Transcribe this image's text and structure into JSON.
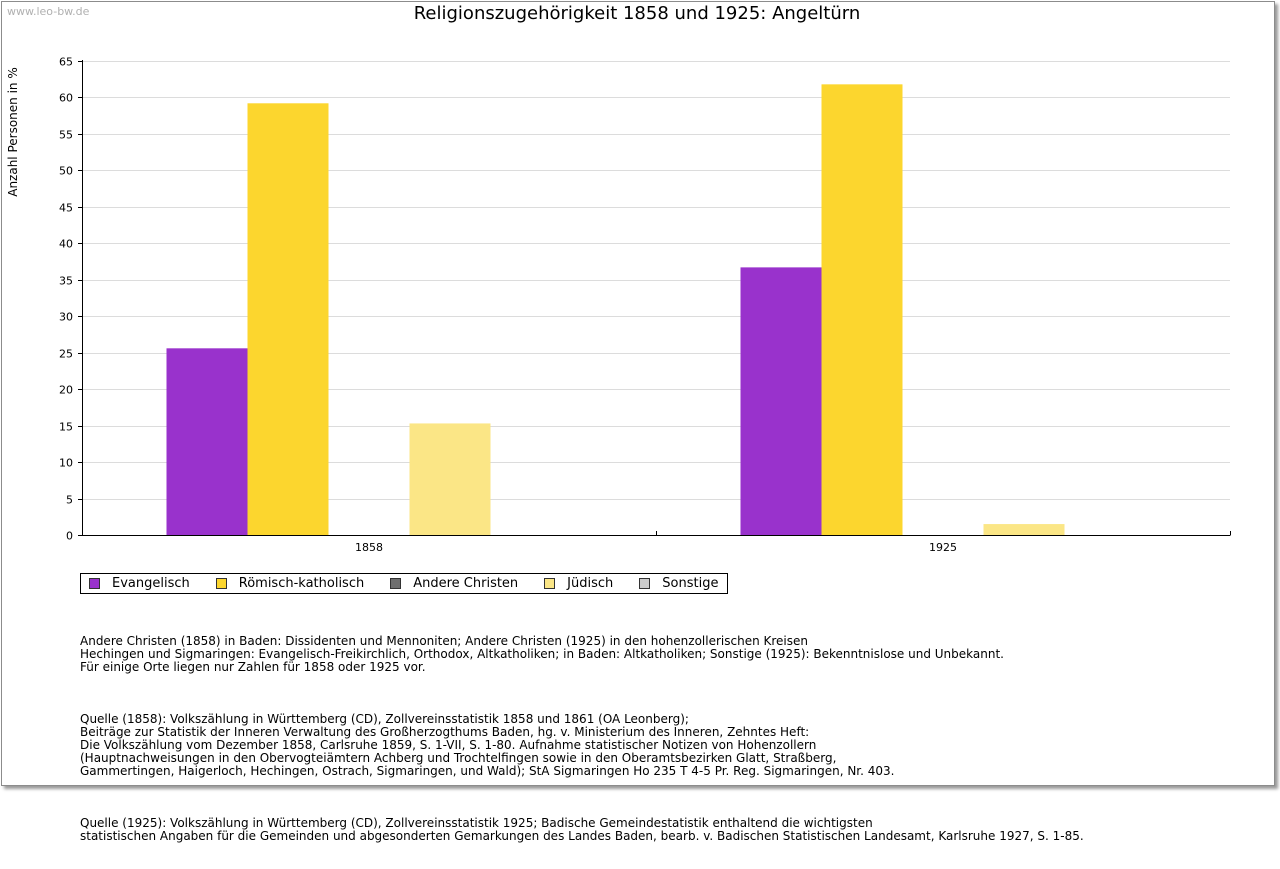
{
  "watermark": "www.leo-bw.de",
  "chart_data": {
    "type": "bar",
    "title": "Religionszugehörigkeit 1858 und 1925: Angeltürn",
    "ylabel": "Anzahl Personen in %",
    "xlabel": "",
    "ylim": [
      0,
      65
    ],
    "yticks": [
      0,
      5,
      10,
      15,
      20,
      25,
      30,
      35,
      40,
      45,
      50,
      55,
      60,
      65
    ],
    "grid": true,
    "categories": [
      "1858",
      "1925"
    ],
    "series": [
      {
        "name": "Evangelisch",
        "color": "#9932cc",
        "values": [
          25.6,
          36.7
        ]
      },
      {
        "name": "Römisch-katholisch",
        "color": "#fcd62e",
        "values": [
          59.2,
          61.8
        ]
      },
      {
        "name": "Andere Christen",
        "color": "#6e6e6e",
        "values": [
          0,
          0
        ]
      },
      {
        "name": "Jüdisch",
        "color": "#fbe686",
        "values": [
          15.3,
          1.5
        ]
      },
      {
        "name": "Sonstige",
        "color": "#cccccc",
        "values": [
          0,
          0
        ]
      }
    ],
    "legend_position": "bottom"
  },
  "notes": [
    "Andere Christen (1858) in Baden: Dissidenten und Mennoniten; Andere Christen (1925) in den hohenzollerischen Kreisen\nHechingen und Sigmaringen: Evangelisch-Freikirchlich, Orthodox, Altkatholiken; in Baden: Altkatholiken; Sonstige (1925): Bekenntnislose und Unbekannt.\nFür einige Orte liegen nur Zahlen für 1858 oder 1925 vor.",
    "Quelle (1858): Volkszählung in Württemberg (CD), Zollvereinsstatistik 1858 und 1861 (OA Leonberg);\nBeiträge zur Statistik der Inneren Verwaltung des Großherzogthums Baden, hg. v. Ministerium des Inneren, Zehntes Heft:\nDie Volkszählung vom Dezember 1858, Carlsruhe 1859, S. 1-VII, S. 1-80. Aufnahme statistischer Notizen von Hohenzollern\n(Hauptnachweisungen in den Obervogteiämtern Achberg und Trochtelfingen sowie in den Oberamtsbezirken Glatt, Straßberg,\nGammertingen, Haigerloch, Hechingen, Ostrach, Sigmaringen, und Wald); StA Sigmaringen Ho 235 T 4-5 Pr. Reg. Sigmaringen, Nr. 403.",
    "Quelle (1925): Volkszählung in Württemberg (CD), Zollvereinsstatistik 1925; Badische Gemeindestatistik enthaltend die wichtigsten\nstatistischen Angaben für die Gemeinden und abgesonderten Gemarkungen des Landes Baden, bearb. v. Badischen Statistischen Landesamt, Karlsruhe 1927, S. 1-85."
  ]
}
